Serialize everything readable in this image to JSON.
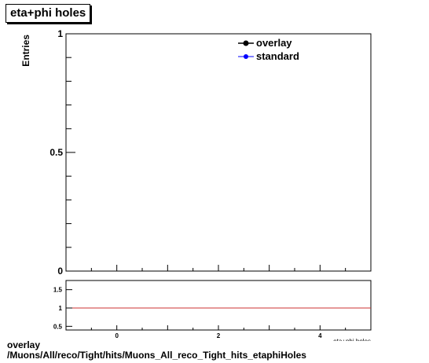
{
  "title": "eta+phi holes",
  "caption": {
    "line1": "overlay",
    "line2": "/Muons/All/reco/Tight/hits/Muons_All_reco_Tight_hits_etaphiHoles"
  },
  "colors": {
    "overlay": "#000000",
    "standard": "#0000ff",
    "ratio_line": "#cc3333"
  },
  "chart_data": [
    {
      "type": "line",
      "title": "eta+phi holes",
      "ylabel": "Entries",
      "xlabel": "eta+phi holes",
      "xlim": [
        -1,
        5
      ],
      "ylim": [
        0,
        1
      ],
      "x_tick_labels": [
        "0",
        "2",
        "4"
      ],
      "y_tick_labels": [
        "0",
        "0.5",
        "1"
      ],
      "legend": {
        "position": "top-right",
        "entries": [
          "overlay",
          "standard"
        ]
      },
      "series": [
        {
          "name": "overlay",
          "x": [],
          "y": []
        },
        {
          "name": "standard",
          "x": [],
          "y": []
        }
      ]
    },
    {
      "type": "line",
      "xlim": [
        -1,
        5
      ],
      "ylim": [
        0.4,
        1.75
      ],
      "x_tick_labels": [
        "0",
        "2",
        "4"
      ],
      "y_tick_labels": [
        "0.5",
        "1",
        "1.5"
      ],
      "reference_line": 1
    }
  ]
}
